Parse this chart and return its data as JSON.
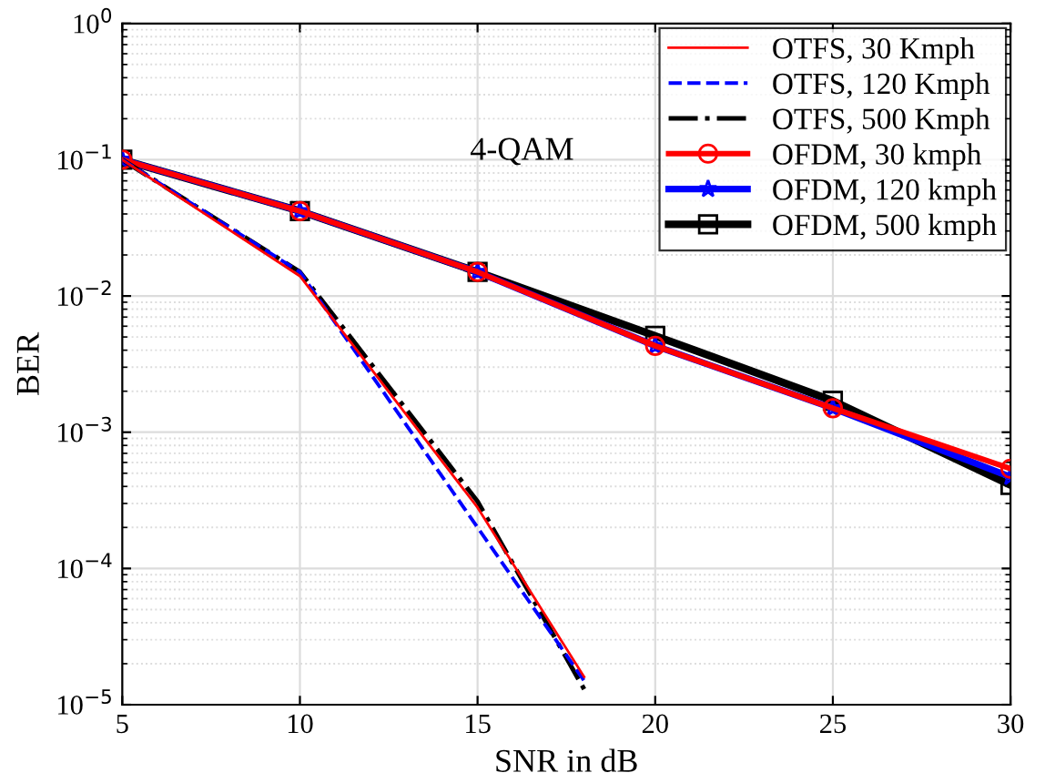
{
  "chart_data": {
    "type": "line",
    "xlabel": "SNR in dB",
    "ylabel": "BER",
    "log": "y",
    "grid": true,
    "legend": "top right",
    "annotations": [
      "4-QAM"
    ],
    "xlim": [
      5,
      30
    ],
    "xticks": [
      5,
      10,
      15,
      20,
      25,
      30
    ],
    "ylim": [
      1e-05,
      1
    ],
    "yticks": [
      {
        "value": 1e-05,
        "label": "10$^{−5}$"
      },
      {
        "value": 0.0001,
        "label": "10$^{−4}$"
      },
      {
        "value": 0.001,
        "label": "10$^{−3}$"
      },
      {
        "value": 0.01,
        "label": "10$^{−2}$"
      },
      {
        "value": 0.1,
        "label": "10$^{−1}$"
      },
      {
        "value": 1,
        "label": "10$^{0}$"
      }
    ],
    "series": [
      {
        "name": "OTFS, 30 Kmph",
        "color": "#ff0000",
        "line_style": "solid",
        "marker": "none",
        "x": [
          5,
          10,
          15,
          18
        ],
        "values": [
          0.1,
          0.014,
          0.00028,
          1.6e-05
        ]
      },
      {
        "name": "OTFS, 120 Kmph",
        "color": "#0000ff",
        "line_style": "dashed",
        "marker": "none",
        "x": [
          5,
          10,
          15,
          18
        ],
        "values": [
          0.1,
          0.015,
          0.0002,
          1.5e-05
        ]
      },
      {
        "name": "OTFS, 500 Kmph",
        "color": "#000000",
        "line_style": "dashdot",
        "marker": "none",
        "x": [
          5,
          10,
          15,
          18
        ],
        "values": [
          0.1,
          0.015,
          0.00031,
          1.3e-05
        ]
      },
      {
        "name": "OFDM, 30 kmph",
        "color": "#ff0000",
        "line_style": "solid",
        "marker": "circle",
        "x": [
          5,
          10,
          15,
          20,
          25,
          30
        ],
        "values": [
          0.1,
          0.042,
          0.015,
          0.0043,
          0.0015,
          0.00054
        ]
      },
      {
        "name": "OFDM, 120 kmph",
        "color": "#0000ff",
        "line_style": "solid",
        "marker": "star",
        "x": [
          5,
          10,
          15,
          20,
          25,
          30
        ],
        "values": [
          0.1,
          0.042,
          0.015,
          0.0043,
          0.0015,
          0.00047
        ]
      },
      {
        "name": "OFDM, 500 kmph",
        "color": "#000000",
        "line_style": "solid",
        "marker": "square",
        "x": [
          5,
          10,
          15,
          20,
          25,
          30
        ],
        "values": [
          0.1,
          0.042,
          0.015,
          0.0051,
          0.0017,
          0.00041
        ]
      }
    ]
  }
}
